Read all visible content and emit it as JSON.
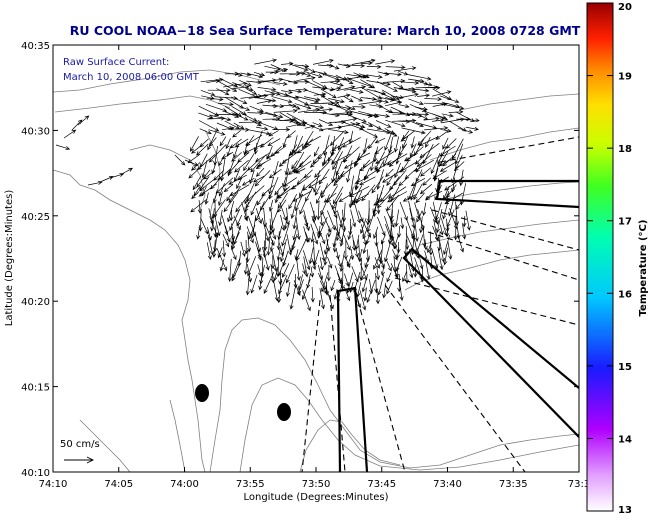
{
  "chart_data": {
    "type": "heatmap",
    "title": "RU COOL  NOAA−18  Sea Surface Temperature:  March 10, 2008 0728 GMT",
    "annotation_lines": [
      "Raw Surface Current:",
      "March 10, 2008 06:00 GMT"
    ],
    "scale_label": "50 cm/s",
    "xlabel": "Longitude (Degrees:Minutes)",
    "ylabel": "Latitude (Degrees:Minutes)",
    "x_ticks": [
      "74:10",
      "74:05",
      "74:00",
      "73:55",
      "73:50",
      "73:45",
      "73:40",
      "73:35",
      "73:3"
    ],
    "y_ticks": [
      "40:35",
      "40:30",
      "40:25",
      "40:20",
      "40:15",
      "40:10"
    ],
    "colorbar": {
      "label": "Temperature (°C)",
      "ticks": [
        "20",
        "19",
        "18",
        "17",
        "16",
        "15",
        "14",
        "13"
      ],
      "range": [
        13,
        20
      ]
    },
    "colors": {
      "title": "#00008b",
      "annotation": "#1a1aa6",
      "frame": "#000000",
      "contour": "#808080"
    }
  }
}
